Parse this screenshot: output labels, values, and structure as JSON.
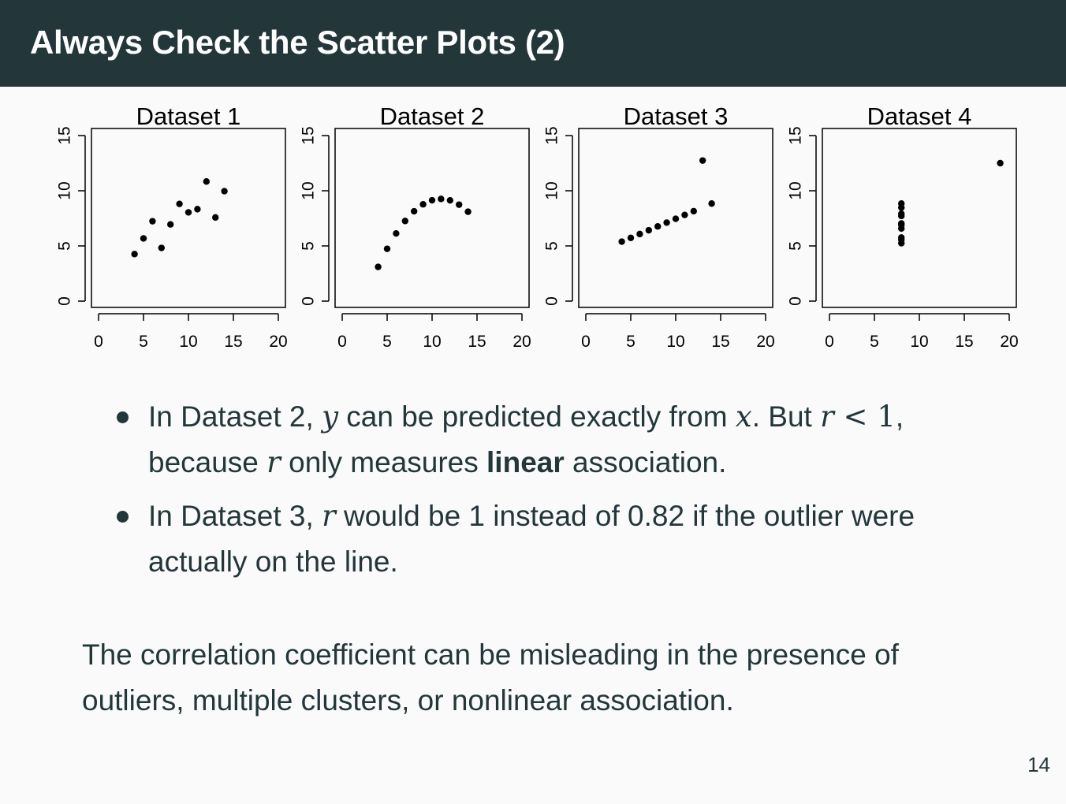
{
  "slide": {
    "title": "Always Check the Scatter Plots (2)",
    "page_number": "14",
    "bullets": [
      {
        "parts": {
          "p1": "In Dataset 2, ",
          "m1": "y",
          "p2": " can be predicted exactly from ",
          "m2": "x",
          "p3": ". But ",
          "m3": "r",
          "m4": " < 1",
          "p4": ",",
          "p5": "because ",
          "m5": "r",
          "p6": " only measures ",
          "b1": "linear",
          "p7": " association."
        }
      },
      {
        "parts": {
          "p1": "In Dataset 3, ",
          "m1": "r",
          "p2": " would be 1 instead of 0.82 if the outlier were actually on the line."
        }
      }
    ],
    "summary": "The correlation coefficient can be misleading in the presence of outliers, multiple clusters, or nonlinear association."
  },
  "chart_data": [
    {
      "type": "scatter",
      "title": "Dataset 1",
      "xlim": [
        0,
        20
      ],
      "ylim": [
        0,
        15
      ],
      "xticks": [
        0,
        5,
        10,
        15,
        20
      ],
      "yticks": [
        0,
        5,
        10,
        15
      ],
      "x": [
        10,
        8,
        13,
        9,
        11,
        14,
        6,
        4,
        12,
        7,
        5
      ],
      "y": [
        8.04,
        6.95,
        7.58,
        8.81,
        8.33,
        9.96,
        7.24,
        4.26,
        10.84,
        4.82,
        5.68
      ]
    },
    {
      "type": "scatter",
      "title": "Dataset 2",
      "xlim": [
        0,
        20
      ],
      "ylim": [
        0,
        15
      ],
      "xticks": [
        0,
        5,
        10,
        15,
        20
      ],
      "yticks": [
        0,
        5,
        10,
        15
      ],
      "x": [
        10,
        8,
        13,
        9,
        11,
        14,
        6,
        4,
        12,
        7,
        5
      ],
      "y": [
        9.14,
        8.14,
        8.74,
        8.77,
        9.26,
        8.1,
        6.13,
        3.1,
        9.13,
        7.26,
        4.74
      ]
    },
    {
      "type": "scatter",
      "title": "Dataset 3",
      "xlim": [
        0,
        20
      ],
      "ylim": [
        0,
        15
      ],
      "xticks": [
        0,
        5,
        10,
        15,
        20
      ],
      "yticks": [
        0,
        5,
        10,
        15
      ],
      "x": [
        10,
        8,
        13,
        9,
        11,
        14,
        6,
        4,
        12,
        7,
        5
      ],
      "y": [
        7.46,
        6.77,
        12.74,
        7.11,
        7.81,
        8.84,
        6.08,
        5.39,
        8.15,
        6.42,
        5.73
      ]
    },
    {
      "type": "scatter",
      "title": "Dataset 4",
      "xlim": [
        0,
        20
      ],
      "ylim": [
        0,
        15
      ],
      "xticks": [
        0,
        5,
        10,
        15,
        20
      ],
      "yticks": [
        0,
        5,
        10,
        15
      ],
      "x": [
        8,
        8,
        8,
        8,
        8,
        8,
        8,
        19,
        8,
        8,
        8
      ],
      "y": [
        6.58,
        5.76,
        7.71,
        8.84,
        8.47,
        7.04,
        5.25,
        12.5,
        5.56,
        7.91,
        6.89
      ]
    }
  ]
}
